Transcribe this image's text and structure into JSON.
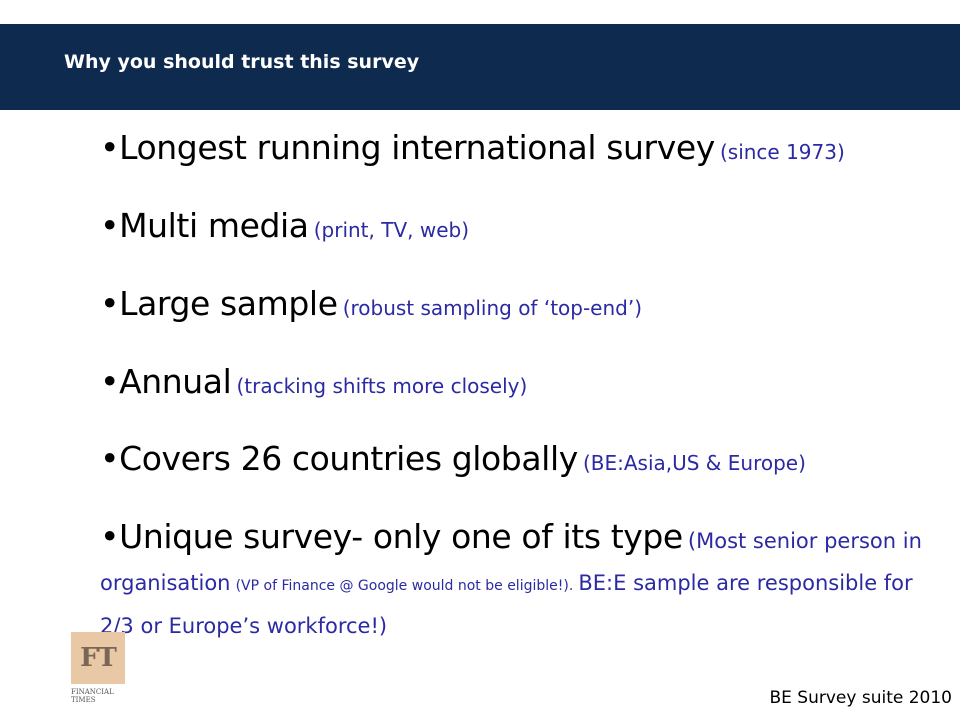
{
  "header": {
    "title": "Why you should trust this survey",
    "background_color": "#0e2a4f"
  },
  "bullets": [
    {
      "marker": "•",
      "main": "Longest running international survey",
      "note": "(since 1973)"
    },
    {
      "marker": "•",
      "main": "Multi media",
      "note": "(print, TV, web)"
    },
    {
      "marker": "•",
      "main": "Large sample",
      "note": "(robust sampling of ‘top-end’)"
    },
    {
      "marker": "•",
      "main": "Annual",
      "note": "(tracking shifts more closely)"
    },
    {
      "marker": "•",
      "main": "Covers 26 countries globally",
      "note": "(BE:Asia,US & Europe)"
    },
    {
      "marker": "•",
      "main": "Unique survey- only one of its type",
      "note_a": "(Most senior person in organisation",
      "note_small": "(VP of Finance @ Google would not be eligible!).",
      "note_b": "BE:E sample are responsible for 2/3 or Europe’s workforce!)"
    }
  ],
  "logo": {
    "text": "FT",
    "caption": "FINANCIAL TIMES"
  },
  "footer": {
    "text": "BE Survey suite 2010"
  },
  "colors": {
    "note_text": "#2b2aa3",
    "logo_bg": "#e9c8a6"
  }
}
